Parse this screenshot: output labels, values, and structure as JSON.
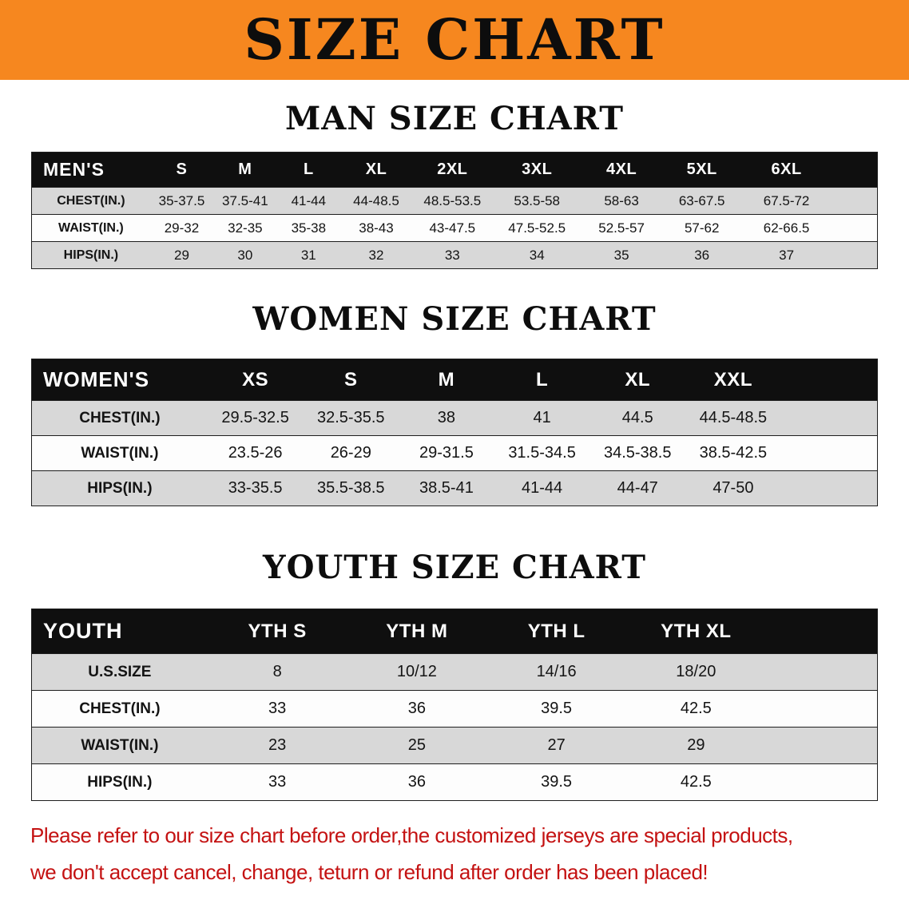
{
  "banner": {
    "title": "SIZE CHART",
    "bg_color": "#F6871F"
  },
  "sections": [
    {
      "heading": "MAN SIZE CHART",
      "table": {
        "title": "MEN'S",
        "header": [
          "MEN'S",
          "S",
          "M",
          "L",
          "XL",
          "2XL",
          "3XL",
          "4XL",
          "5XL",
          "6XL"
        ],
        "rows": [
          [
            "CHEST(IN.)",
            "35-37.5",
            "37.5-41",
            "41-44",
            "44-48.5",
            "48.5-53.5",
            "53.5-58",
            "58-63",
            "63-67.5",
            "67.5-72"
          ],
          [
            "WAIST(IN.)",
            "29-32",
            "32-35",
            "35-38",
            "38-43",
            "43-47.5",
            "47.5-52.5",
            "52.5-57",
            "57-62",
            "62-66.5"
          ],
          [
            "HIPS(IN.)",
            "29",
            "30",
            "31",
            "32",
            "33",
            "34",
            "35",
            "36",
            "37"
          ]
        ]
      }
    },
    {
      "heading": "WOMEN SIZE CHART",
      "table": {
        "title": "WOMEN'S",
        "header": [
          "WOMEN'S",
          "XS",
          "S",
          "M",
          "L",
          "XL",
          "XXL"
        ],
        "rows": [
          [
            "CHEST(IN.)",
            "29.5-32.5",
            "32.5-35.5",
            "38",
            "41",
            "44.5",
            "44.5-48.5"
          ],
          [
            "WAIST(IN.)",
            "23.5-26",
            "26-29",
            "29-31.5",
            "31.5-34.5",
            "34.5-38.5",
            "38.5-42.5"
          ],
          [
            "HIPS(IN.)",
            "33-35.5",
            "35.5-38.5",
            "38.5-41",
            "41-44",
            "44-47",
            "47-50"
          ]
        ]
      }
    },
    {
      "heading": "YOUTH SIZE CHART",
      "table": {
        "title": "YOUTH",
        "header": [
          "YOUTH",
          "YTH S",
          "YTH M",
          "YTH L",
          "YTH XL"
        ],
        "rows": [
          [
            "U.S.SIZE",
            "8",
            "10/12",
            "14/16",
            "18/20"
          ],
          [
            "CHEST(IN.)",
            "33",
            "36",
            "39.5",
            "42.5"
          ],
          [
            "WAIST(IN.)",
            "23",
            "25",
            "27",
            "29"
          ],
          [
            "HIPS(IN.)",
            "33",
            "36",
            "39.5",
            "42.5"
          ]
        ]
      }
    }
  ],
  "footer": {
    "line1": "Please refer to our size chart before order,the customized jerseys are special products,",
    "line2": "we don't accept cancel, change, teturn or refund after order has been placed!",
    "text_color": "#C41212"
  }
}
